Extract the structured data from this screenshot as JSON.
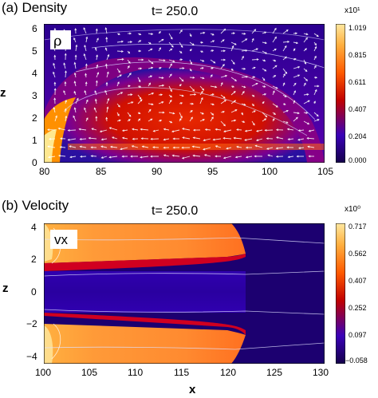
{
  "panels": [
    {
      "title": "(a) Density",
      "time_label": "t=  250.0",
      "field_label": "ρ",
      "ylabel": "z",
      "xticks": [
        "80",
        "85",
        "90",
        "95",
        "100",
        "105"
      ],
      "yticks": [
        "0",
        "1",
        "2",
        "3",
        "4",
        "5",
        "6"
      ],
      "colorbar": {
        "exponent": "x10¹",
        "ticks": [
          "1.019",
          "0.815",
          "0.611",
          "0.407",
          "0.204",
          "0.000"
        ]
      }
    },
    {
      "title": "(b) Velocity",
      "time_label": "t=  250.0",
      "field_label": "vx",
      "ylabel": "z",
      "xlabel": "x",
      "xticks": [
        "100",
        "105",
        "110",
        "115",
        "120",
        "125",
        "130"
      ],
      "yticks": [
        "4",
        "2",
        "0",
        "−2",
        "−4"
      ],
      "colorbar": {
        "exponent": "x10⁰",
        "ticks": [
          "0.717",
          "0.562",
          "0.407",
          "0.252",
          "0.097",
          "−0.058"
        ]
      }
    }
  ],
  "chart_data": [
    {
      "type": "heatmap",
      "title": "(a) Density",
      "subtitle": "t=  250.0",
      "xlabel": "",
      "ylabel": "z",
      "xlim": [
        80,
        105
      ],
      "ylim": [
        0,
        6.3
      ],
      "colorbar_range": [
        0.0,
        1.019
      ],
      "colorbar_exponent": "x10¹",
      "colorbar_ticks": [
        1.019,
        0.815,
        0.611,
        0.407,
        0.204,
        0.0
      ],
      "overlays": [
        "velocity vectors",
        "contour lines"
      ],
      "colors": [
        "#14004a",
        "#3a00b8",
        "#c00000",
        "#ff5a00",
        "#ffb040",
        "#ffe8a0"
      ]
    },
    {
      "type": "heatmap",
      "title": "(b) Velocity",
      "subtitle": "t=  250.0",
      "xlabel": "x",
      "ylabel": "z",
      "xlim": [
        100,
        130
      ],
      "ylim": [
        -4.3,
        4.3
      ],
      "colorbar_range": [
        -0.058,
        0.717
      ],
      "colorbar_exponent": "x10⁰",
      "colorbar_ticks": [
        0.717,
        0.562,
        0.407,
        0.252,
        0.097,
        -0.058
      ],
      "overlays": [
        "contour lines"
      ],
      "colors": [
        "#14004a",
        "#3a00b8",
        "#c00000",
        "#ff5a00",
        "#ffb040",
        "#ffe8a0"
      ]
    }
  ]
}
